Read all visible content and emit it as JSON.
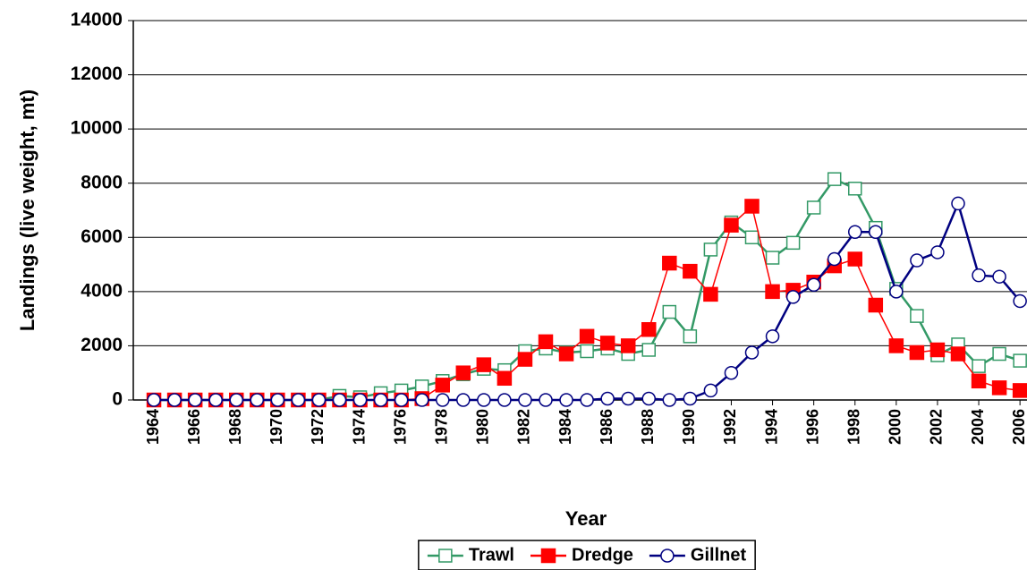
{
  "chart_data": {
    "type": "line",
    "y_label": "Landings (live weight, mt)",
    "x_label": "Year",
    "x": [
      1964,
      1965,
      1966,
      1967,
      1968,
      1969,
      1970,
      1971,
      1972,
      1973,
      1974,
      1975,
      1976,
      1977,
      1978,
      1979,
      1980,
      1981,
      1982,
      1983,
      1984,
      1985,
      1986,
      1987,
      1988,
      1989,
      1990,
      1991,
      1992,
      1993,
      1994,
      1995,
      1996,
      1997,
      1998,
      1999,
      2000,
      2001,
      2002,
      2003,
      2004,
      2005,
      2006
    ],
    "series": [
      {
        "name": "Trawl",
        "color": "#339966",
        "marker": "square-open",
        "values": [
          0,
          0,
          0,
          0,
          0,
          0,
          0,
          0,
          0,
          150,
          100,
          250,
          350,
          500,
          700,
          950,
          1150,
          1100,
          1800,
          1900,
          1750,
          1800,
          1900,
          1700,
          1850,
          3250,
          2350,
          5550,
          6550,
          6000,
          5250,
          5800,
          7100,
          8150,
          7800,
          6350,
          4100,
          3100,
          1650,
          2050,
          1250,
          1700,
          1450
        ]
      },
      {
        "name": "Dredge",
        "color": "#ff0000",
        "marker": "square-filled",
        "values": [
          0,
          0,
          0,
          0,
          0,
          0,
          0,
          0,
          0,
          0,
          0,
          0,
          0,
          50,
          550,
          1000,
          1300,
          800,
          1500,
          2150,
          1700,
          2350,
          2100,
          2000,
          2600,
          5050,
          4750,
          3900,
          6450,
          7150,
          4000,
          4050,
          4350,
          4950,
          5200,
          3500,
          2000,
          1750,
          1850,
          1700,
          700,
          450,
          350
        ]
      },
      {
        "name": "Gillnet",
        "color": "#000080",
        "marker": "circle-open",
        "values": [
          0,
          0,
          0,
          0,
          0,
          0,
          0,
          0,
          0,
          0,
          0,
          0,
          0,
          0,
          0,
          0,
          0,
          0,
          0,
          0,
          0,
          0,
          50,
          50,
          50,
          0,
          50,
          350,
          1000,
          1750,
          2350,
          3800,
          4250,
          5200,
          6200,
          6200,
          4000,
          5150,
          5450,
          7250,
          4600,
          4550,
          3650
        ]
      }
    ],
    "xlim": [
      1963,
      2007
    ],
    "xticks": [
      1964,
      1966,
      1968,
      1970,
      1972,
      1974,
      1976,
      1978,
      1980,
      1982,
      1984,
      1986,
      1988,
      1990,
      1992,
      1994,
      1996,
      1998,
      2000,
      2002,
      2004,
      2006
    ],
    "ylim": [
      0,
      14000
    ],
    "yticks": [
      0,
      2000,
      4000,
      6000,
      8000,
      10000,
      12000,
      14000
    ],
    "grid": true,
    "legend": "bottom"
  }
}
